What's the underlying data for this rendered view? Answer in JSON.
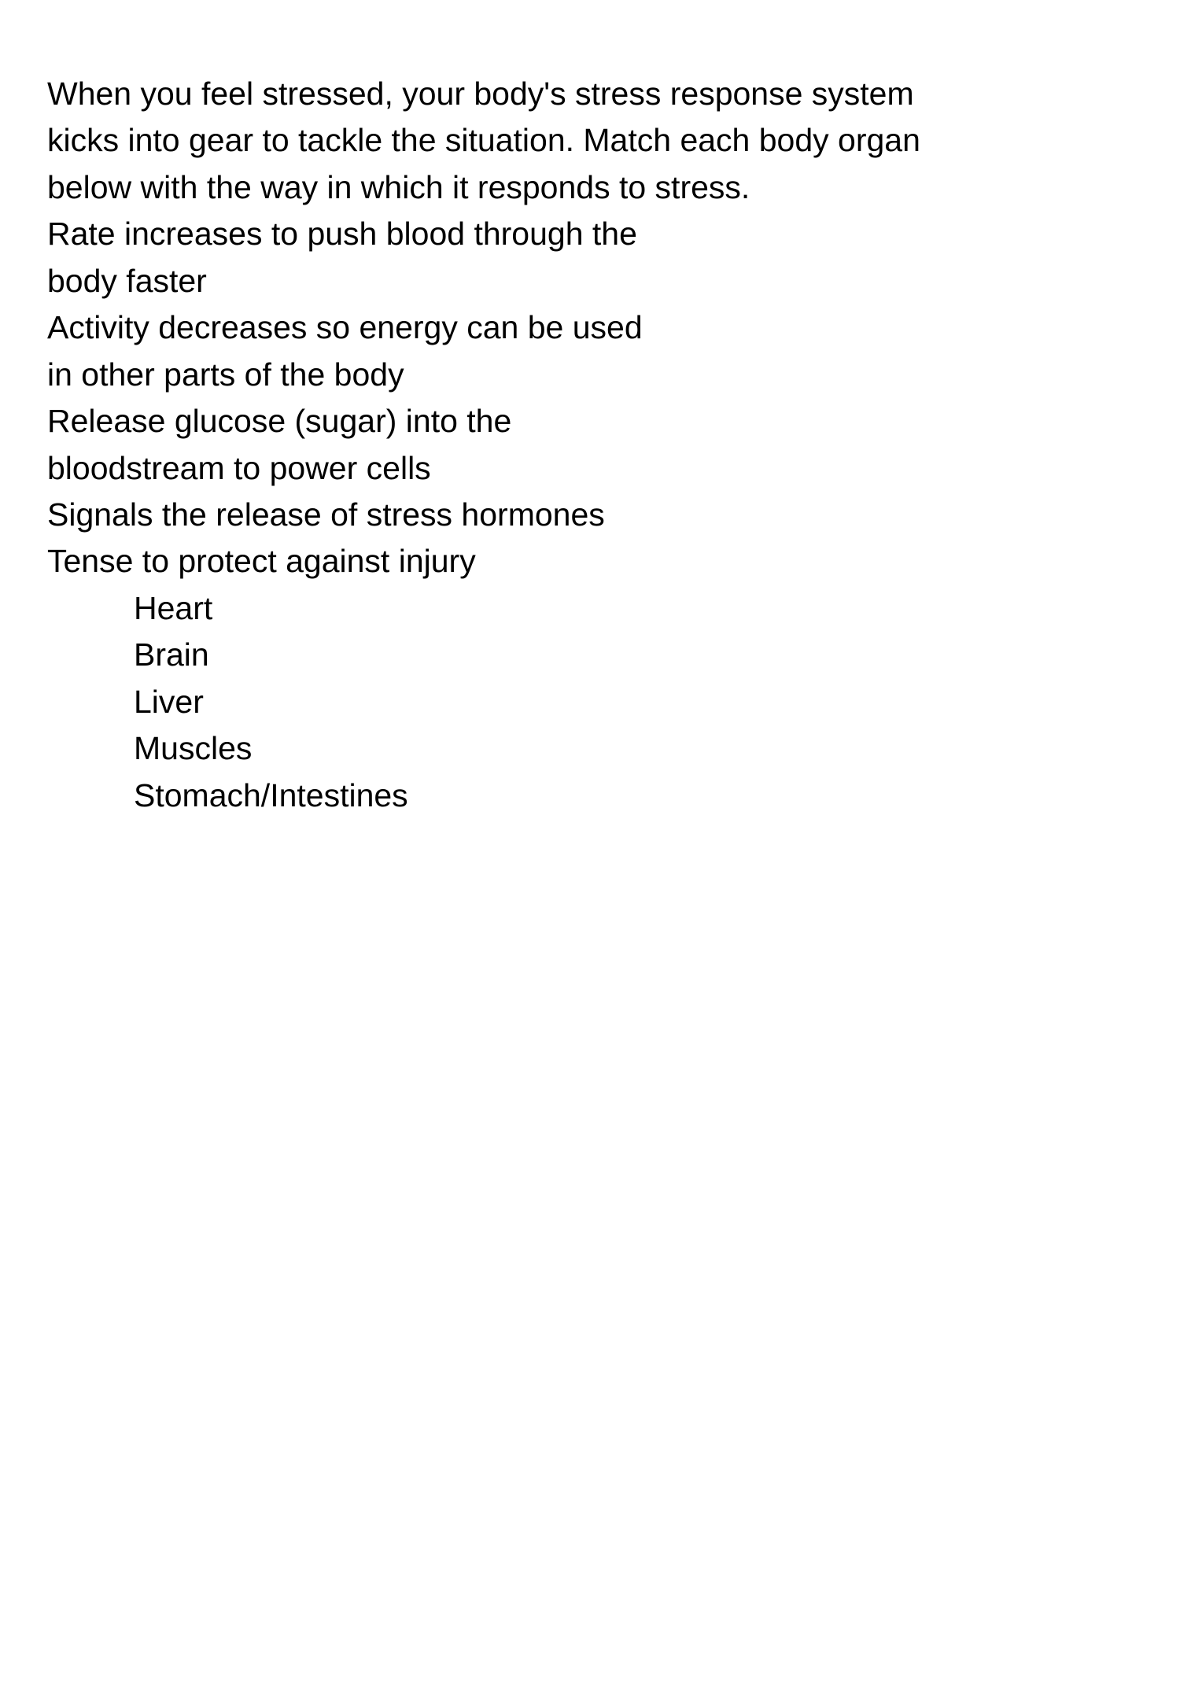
{
  "colors": {
    "text": "#000000",
    "background": "#ffffff"
  },
  "typography": {
    "font_family": "-apple-system",
    "font_size_pt": 31,
    "font_weight": 400,
    "line_height": 1.45
  },
  "intro": "When you feel stressed, your body's stress response system kicks into gear to tackle the situation. Match each body organ below with the way in which it responds to stress.",
  "responses": [
    "Rate increases to push blood through the body faster",
    "Activity decreases so energy can be used in other parts of the body",
    "Release glucose (sugar) into the bloodstream to power cells",
    "Signals the release of stress hormones",
    "Tense to protect against injury"
  ],
  "options": [
    "Heart",
    "Brain",
    "Liver",
    "Muscles",
    "Stomach/Intestines"
  ]
}
